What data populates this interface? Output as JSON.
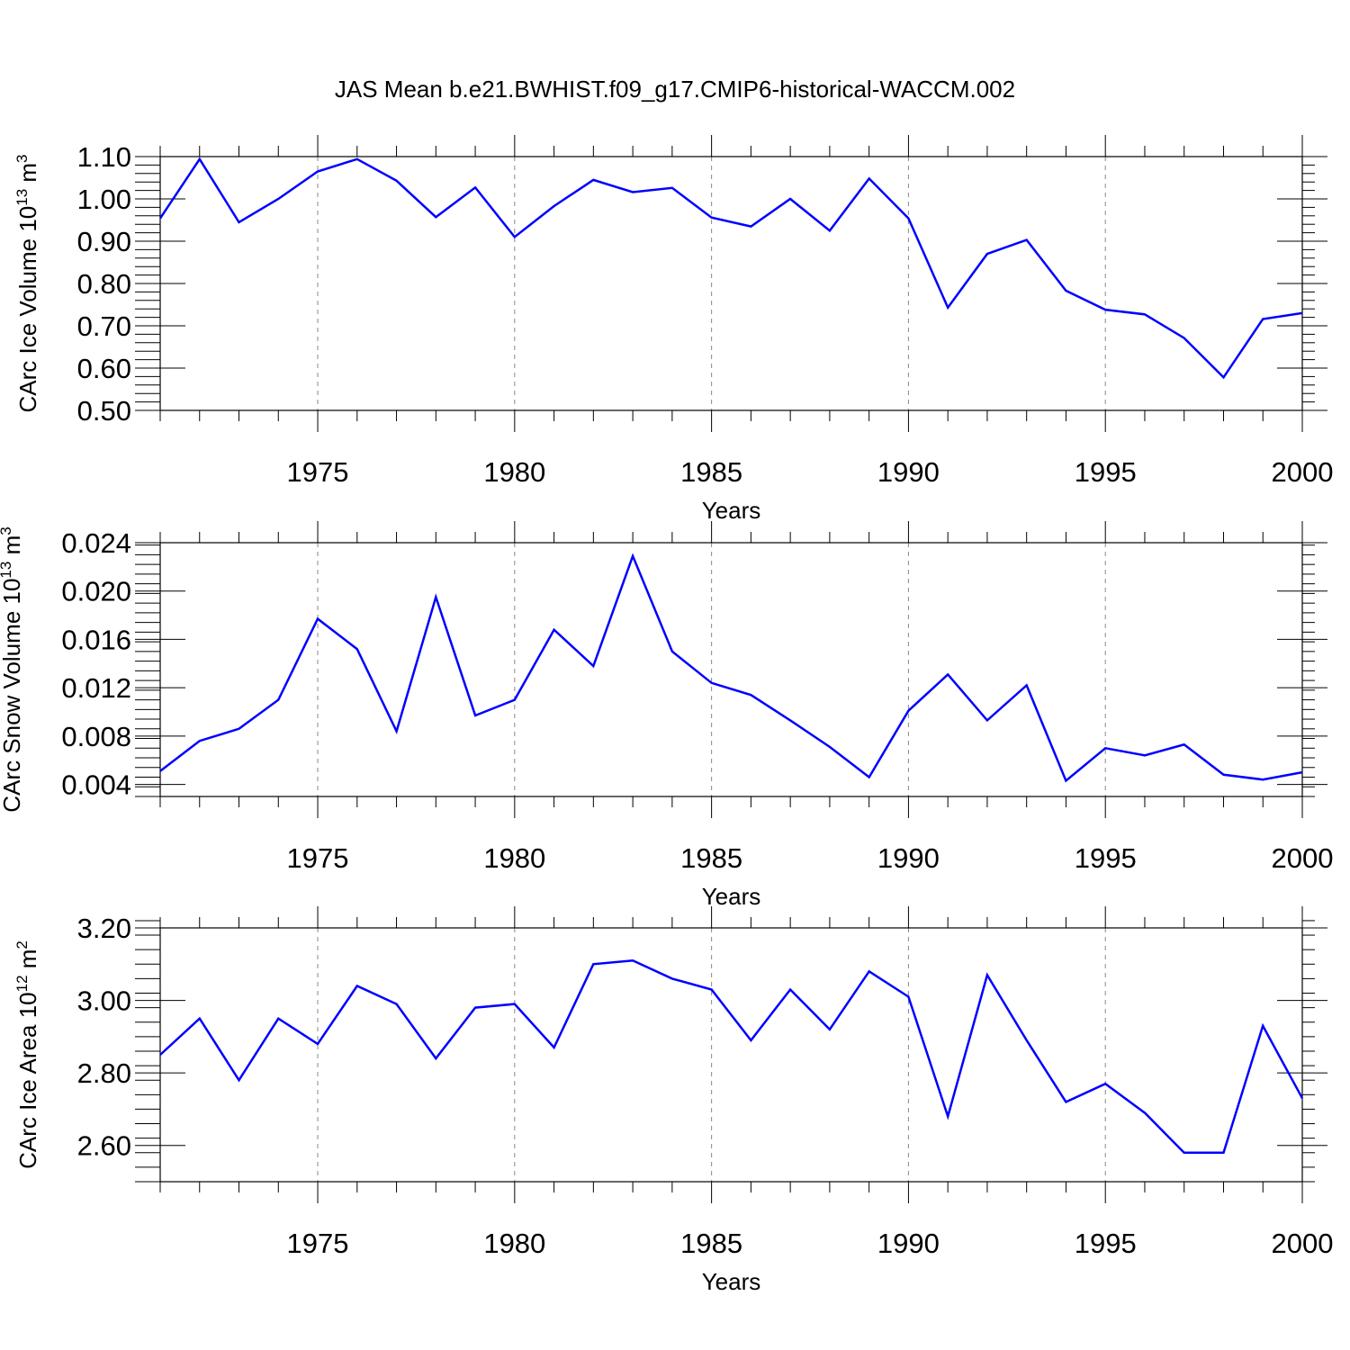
{
  "figure": {
    "title": "JAS Mean b.e21.BWHIST.f09_g17.CMIP6-historical-WACCM.002"
  },
  "chart_data": [
    {
      "type": "line",
      "xlabel": "Years",
      "ylabel": "CArc Ice Volume 10",
      "ylabel_exp": "13",
      "ylabel_unit": " m",
      "ylabel_unit_exp": "3",
      "xlim": [
        1971,
        2000
      ],
      "ylim": [
        0.5,
        1.1
      ],
      "xticks": [
        1975,
        1980,
        1985,
        1990,
        1995,
        2000
      ],
      "xtick_labels": [
        "1975",
        "1980",
        "1985",
        "1990",
        "1995",
        "2000"
      ],
      "yticks": [
        0.5,
        0.6,
        0.7,
        0.8,
        0.9,
        1.0,
        1.1
      ],
      "ytick_labels": [
        "0.50",
        "0.60",
        "0.70",
        "0.80",
        "0.90",
        "1.00",
        "1.10"
      ],
      "grid": "dashed vertical at major x ticks",
      "color": "#0000ff",
      "x": [
        1971,
        1972,
        1973,
        1974,
        1975,
        1976,
        1977,
        1978,
        1979,
        1980,
        1981,
        1982,
        1983,
        1984,
        1985,
        1986,
        1987,
        1988,
        1989,
        1990,
        1991,
        1992,
        1993,
        1994,
        1995,
        1996,
        1997,
        1998,
        1999,
        2000
      ],
      "values": [
        0.954,
        1.094,
        0.945,
        1.0,
        1.065,
        1.094,
        1.043,
        0.957,
        1.027,
        0.91,
        0.983,
        1.045,
        1.016,
        1.026,
        0.956,
        0.935,
        1.0,
        0.925,
        1.048,
        0.954,
        0.743,
        0.87,
        0.903,
        0.783,
        0.738,
        0.727,
        0.671,
        0.578,
        0.716,
        0.73
      ]
    },
    {
      "type": "line",
      "xlabel": "Years",
      "ylabel": "CArc Snow Volume 10",
      "ylabel_exp": "13",
      "ylabel_unit": " m",
      "ylabel_unit_exp": "3",
      "xlim": [
        1971,
        2000
      ],
      "ylim": [
        0.003,
        0.024
      ],
      "xticks": [
        1975,
        1980,
        1985,
        1990,
        1995,
        2000
      ],
      "xtick_labels": [
        "1975",
        "1980",
        "1985",
        "1990",
        "1995",
        "2000"
      ],
      "yticks": [
        0.004,
        0.008,
        0.012,
        0.016,
        0.02,
        0.024
      ],
      "ytick_labels": [
        "0.004",
        "0.008",
        "0.012",
        "0.016",
        "0.020",
        "0.024"
      ],
      "grid": "dashed vertical at major x ticks",
      "color": "#0000ff",
      "x": [
        1971,
        1972,
        1973,
        1974,
        1975,
        1976,
        1977,
        1978,
        1979,
        1980,
        1981,
        1982,
        1983,
        1984,
        1985,
        1986,
        1987,
        1988,
        1989,
        1990,
        1991,
        1992,
        1993,
        1994,
        1995,
        1996,
        1997,
        1998,
        1999,
        2000
      ],
      "values": [
        0.0051,
        0.0076,
        0.0086,
        0.011,
        0.0177,
        0.0152,
        0.0084,
        0.0195,
        0.0097,
        0.011,
        0.0168,
        0.0138,
        0.0229,
        0.015,
        0.0124,
        0.0114,
        0.0093,
        0.0071,
        0.0046,
        0.0101,
        0.0131,
        0.0093,
        0.0122,
        0.0043,
        0.007,
        0.0064,
        0.0073,
        0.0048,
        0.0044,
        0.005
      ]
    },
    {
      "type": "line",
      "xlabel": "Years",
      "ylabel": "CArc Ice Area 10",
      "ylabel_exp": "12",
      "ylabel_unit": " m",
      "ylabel_unit_exp": "2",
      "xlim": [
        1971,
        2000
      ],
      "ylim": [
        2.5,
        3.2
      ],
      "xticks": [
        1975,
        1980,
        1985,
        1990,
        1995,
        2000
      ],
      "xtick_labels": [
        "1975",
        "1980",
        "1985",
        "1990",
        "1995",
        "2000"
      ],
      "yticks": [
        2.6,
        2.8,
        3.0,
        3.2
      ],
      "ytick_labels": [
        "2.60",
        "2.80",
        "3.00",
        "3.20"
      ],
      "grid": "dashed vertical at major x ticks",
      "color": "#0000ff",
      "x": [
        1971,
        1972,
        1973,
        1974,
        1975,
        1976,
        1977,
        1978,
        1979,
        1980,
        1981,
        1982,
        1983,
        1984,
        1985,
        1986,
        1987,
        1988,
        1989,
        1990,
        1991,
        1992,
        1993,
        1994,
        1995,
        1996,
        1997,
        1998,
        1999,
        2000
      ],
      "values": [
        2.85,
        2.95,
        2.78,
        2.95,
        2.88,
        3.04,
        2.99,
        2.84,
        2.98,
        2.99,
        2.87,
        3.1,
        3.11,
        3.06,
        3.03,
        2.89,
        3.03,
        2.92,
        3.08,
        3.01,
        2.68,
        3.07,
        2.89,
        2.72,
        2.77,
        2.69,
        2.58,
        2.58,
        2.93,
        2.73
      ]
    }
  ]
}
